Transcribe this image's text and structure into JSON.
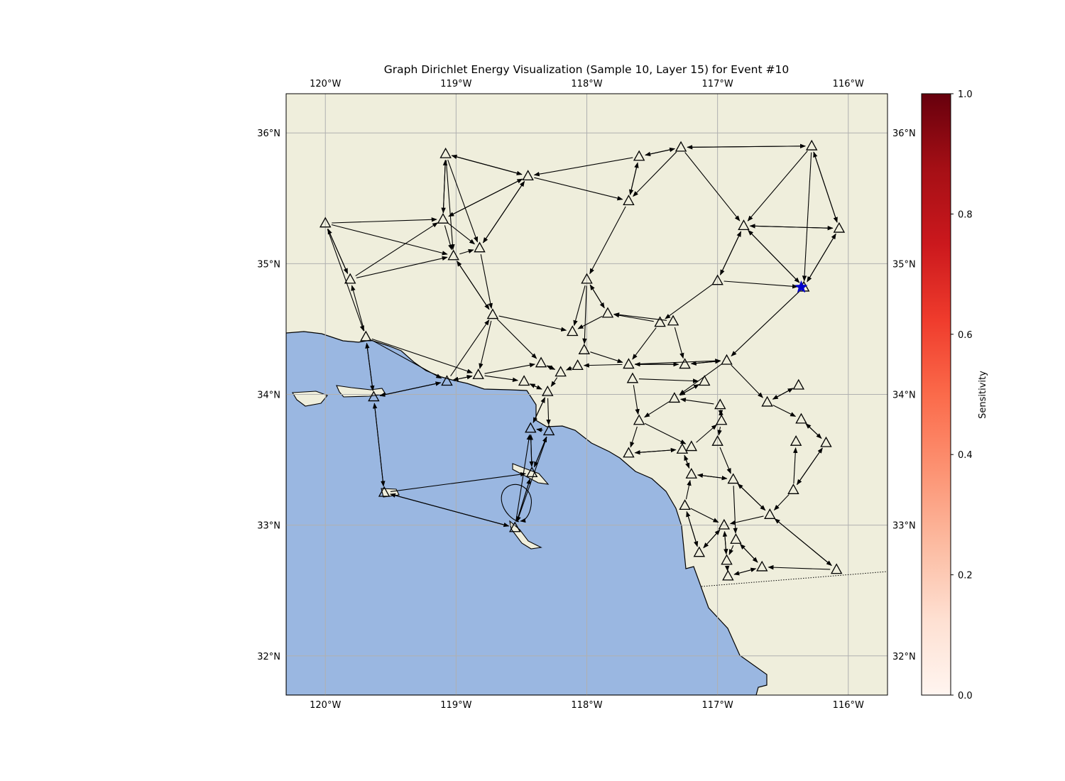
{
  "title": "Graph Dirichlet Energy Visualization (Sample 10, Layer 15) for Event #10",
  "map": {
    "lon_range": [
      -120.3,
      -115.7
    ],
    "lat_range": [
      31.7,
      36.3
    ],
    "lon_ticks": [
      {
        "value": -120,
        "label": "120°W"
      },
      {
        "value": -119,
        "label": "119°W"
      },
      {
        "value": -118,
        "label": "118°W"
      },
      {
        "value": -117,
        "label": "117°W"
      },
      {
        "value": -116,
        "label": "116°W"
      }
    ],
    "lat_ticks": [
      {
        "value": 36,
        "label": "36°N"
      },
      {
        "value": 35,
        "label": "35°N"
      },
      {
        "value": 34,
        "label": "34°N"
      },
      {
        "value": 33,
        "label": "33°N"
      },
      {
        "value": 32,
        "label": "32°N"
      }
    ],
    "colors": {
      "land": "#efeedc",
      "ocean": "#9ab7e1",
      "grid": "#b0b0b0",
      "event": "#0000cc",
      "station_edge": "#000000"
    },
    "event": {
      "lon": -116.36,
      "lat": 34.82,
      "marker": "star"
    },
    "stations": [
      [
        -119.08,
        35.84
      ],
      [
        -118.45,
        35.67
      ],
      [
        -117.6,
        35.82
      ],
      [
        -117.28,
        35.89
      ],
      [
        -116.28,
        35.9
      ],
      [
        -120.0,
        35.31
      ],
      [
        -119.1,
        35.34
      ],
      [
        -119.02,
        35.06
      ],
      [
        -118.82,
        35.12
      ],
      [
        -117.68,
        35.48
      ],
      [
        -116.8,
        35.29
      ],
      [
        -116.07,
        35.27
      ],
      [
        -119.81,
        34.88
      ],
      [
        -118.0,
        34.88
      ],
      [
        -117.0,
        34.87
      ],
      [
        -116.34,
        34.82
      ],
      [
        -118.72,
        34.61
      ],
      [
        -117.84,
        34.62
      ],
      [
        -117.44,
        34.55
      ],
      [
        -117.34,
        34.56
      ],
      [
        -118.11,
        34.48
      ],
      [
        -119.69,
        34.44
      ],
      [
        -118.35,
        34.24
      ],
      [
        -118.02,
        34.34
      ],
      [
        -117.68,
        34.23
      ],
      [
        -117.25,
        34.23
      ],
      [
        -116.93,
        34.26
      ],
      [
        -118.83,
        34.15
      ],
      [
        -119.07,
        34.1
      ],
      [
        -118.48,
        34.1
      ],
      [
        -118.2,
        34.17
      ],
      [
        -118.07,
        34.22
      ],
      [
        -117.65,
        34.12
      ],
      [
        -117.1,
        34.1
      ],
      [
        -116.38,
        34.07
      ],
      [
        -119.63,
        33.98
      ],
      [
        -118.3,
        34.02
      ],
      [
        -117.33,
        33.97
      ],
      [
        -116.62,
        33.94
      ],
      [
        -116.98,
        33.92
      ],
      [
        -117.6,
        33.8
      ],
      [
        -116.97,
        33.8
      ],
      [
        -116.36,
        33.81
      ],
      [
        -118.43,
        33.74
      ],
      [
        -118.29,
        33.72
      ],
      [
        -116.17,
        33.63
      ],
      [
        -117.0,
        33.64
      ],
      [
        -116.4,
        33.64
      ],
      [
        -117.27,
        33.58
      ],
      [
        -117.2,
        33.6
      ],
      [
        -117.68,
        33.55
      ],
      [
        -118.42,
        33.4
      ],
      [
        -117.2,
        33.39
      ],
      [
        -116.88,
        33.35
      ],
      [
        -116.42,
        33.27
      ],
      [
        -119.55,
        33.25
      ],
      [
        -117.25,
        33.15
      ],
      [
        -116.6,
        33.08
      ],
      [
        -116.95,
        33.0
      ],
      [
        -118.55,
        32.98
      ],
      [
        -116.86,
        32.89
      ],
      [
        -117.14,
        32.79
      ],
      [
        -116.93,
        32.73
      ],
      [
        -116.66,
        32.68
      ],
      [
        -116.09,
        32.66
      ],
      [
        -116.92,
        32.61
      ]
    ],
    "edges": [
      [
        0,
        1
      ],
      [
        1,
        0
      ],
      [
        0,
        6
      ],
      [
        6,
        0
      ],
      [
        0,
        7
      ],
      [
        0,
        8
      ],
      [
        2,
        3
      ],
      [
        3,
        2
      ],
      [
        2,
        9
      ],
      [
        9,
        2
      ],
      [
        3,
        9
      ],
      [
        4,
        3
      ],
      [
        3,
        4
      ],
      [
        3,
        10
      ],
      [
        4,
        10
      ],
      [
        4,
        11
      ],
      [
        11,
        4
      ],
      [
        4,
        15
      ],
      [
        2,
        1
      ],
      [
        1,
        9
      ],
      [
        5,
        6
      ],
      [
        5,
        7
      ],
      [
        5,
        12
      ],
      [
        12,
        5
      ],
      [
        5,
        21
      ],
      [
        12,
        6
      ],
      [
        6,
        7
      ],
      [
        6,
        1
      ],
      [
        1,
        6
      ],
      [
        6,
        8
      ],
      [
        8,
        1
      ],
      [
        1,
        8
      ],
      [
        7,
        8
      ],
      [
        12,
        7
      ],
      [
        7,
        16
      ],
      [
        16,
        7
      ],
      [
        8,
        16
      ],
      [
        10,
        11
      ],
      [
        11,
        10
      ],
      [
        10,
        15
      ],
      [
        15,
        10
      ],
      [
        10,
        14
      ],
      [
        14,
        10
      ],
      [
        11,
        15
      ],
      [
        15,
        11
      ],
      [
        14,
        15
      ],
      [
        14,
        18
      ],
      [
        15,
        26
      ],
      [
        9,
        13
      ],
      [
        13,
        20
      ],
      [
        13,
        17
      ],
      [
        17,
        13
      ],
      [
        13,
        23
      ],
      [
        16,
        22
      ],
      [
        16,
        27
      ],
      [
        16,
        20
      ],
      [
        28,
        16
      ],
      [
        17,
        20
      ],
      [
        18,
        17
      ],
      [
        19,
        17
      ],
      [
        19,
        25
      ],
      [
        18,
        24
      ],
      [
        21,
        12
      ],
      [
        21,
        35
      ],
      [
        35,
        21
      ],
      [
        21,
        28
      ],
      [
        21,
        27
      ],
      [
        27,
        22
      ],
      [
        27,
        29
      ],
      [
        22,
        30
      ],
      [
        30,
        22
      ],
      [
        23,
        24
      ],
      [
        24,
        31
      ],
      [
        24,
        25
      ],
      [
        25,
        24
      ],
      [
        26,
        25
      ],
      [
        25,
        26
      ],
      [
        26,
        37
      ],
      [
        26,
        38
      ],
      [
        35,
        28
      ],
      [
        28,
        35
      ],
      [
        28,
        27
      ],
      [
        27,
        28
      ],
      [
        29,
        36
      ],
      [
        36,
        29
      ],
      [
        30,
        36
      ],
      [
        31,
        30
      ],
      [
        37,
        33
      ],
      [
        33,
        37
      ],
      [
        39,
        37
      ],
      [
        37,
        40
      ],
      [
        38,
        34
      ],
      [
        34,
        38
      ],
      [
        38,
        42
      ],
      [
        42,
        45
      ],
      [
        45,
        42
      ],
      [
        45,
        54
      ],
      [
        54,
        45
      ],
      [
        36,
        43
      ],
      [
        43,
        36
      ],
      [
        36,
        44
      ],
      [
        44,
        43
      ],
      [
        43,
        51
      ],
      [
        51,
        43
      ],
      [
        44,
        51
      ],
      [
        51,
        44
      ],
      [
        51,
        59
      ],
      [
        59,
        51
      ],
      [
        59,
        43
      ],
      [
        44,
        59
      ],
      [
        55,
        35
      ],
      [
        35,
        55
      ],
      [
        55,
        51
      ],
      [
        55,
        59
      ],
      [
        59,
        55
      ],
      [
        32,
        40
      ],
      [
        40,
        50
      ],
      [
        50,
        48
      ],
      [
        48,
        50
      ],
      [
        40,
        49
      ],
      [
        49,
        41
      ],
      [
        41,
        39
      ],
      [
        39,
        41
      ],
      [
        46,
        53
      ],
      [
        41,
        46
      ],
      [
        52,
        48
      ],
      [
        48,
        52
      ],
      [
        52,
        53
      ],
      [
        53,
        52
      ],
      [
        53,
        57
      ],
      [
        57,
        53
      ],
      [
        53,
        60
      ],
      [
        54,
        57
      ],
      [
        54,
        47
      ],
      [
        56,
        52
      ],
      [
        56,
        61
      ],
      [
        61,
        56
      ],
      [
        58,
        61
      ],
      [
        61,
        58
      ],
      [
        58,
        62
      ],
      [
        62,
        58
      ],
      [
        60,
        63
      ],
      [
        63,
        60
      ],
      [
        63,
        65
      ],
      [
        65,
        63
      ],
      [
        64,
        63
      ],
      [
        64,
        57
      ],
      [
        57,
        64
      ],
      [
        57,
        58
      ],
      [
        60,
        62
      ],
      [
        62,
        65
      ],
      [
        56,
        58
      ],
      [
        24,
        26
      ],
      [
        32,
        33
      ]
    ]
  },
  "colorbar": {
    "label": "Sensitivity",
    "cmap": "Reds",
    "min": 0.0,
    "max": 1.0,
    "ticks": [
      "0.0",
      "0.2",
      "0.4",
      "0.6",
      "0.8",
      "1.0"
    ]
  }
}
